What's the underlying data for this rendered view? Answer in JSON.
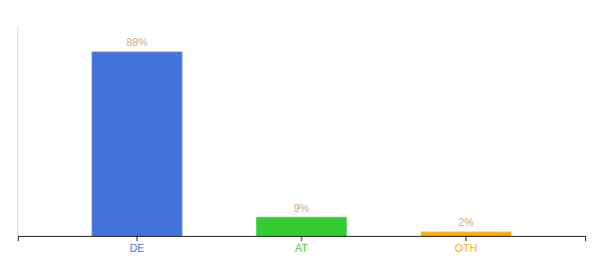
{
  "chart_data": {
    "type": "bar",
    "categories": [
      "DE",
      "AT",
      "OTH"
    ],
    "values": [
      88,
      9,
      2
    ],
    "value_labels": [
      "88%",
      "9%",
      "2%"
    ],
    "colors": [
      "#4472db",
      "#33cc33",
      "#ffaa00"
    ],
    "ylim": [
      0,
      100
    ],
    "data_labels": true,
    "tick_labels": "x"
  }
}
